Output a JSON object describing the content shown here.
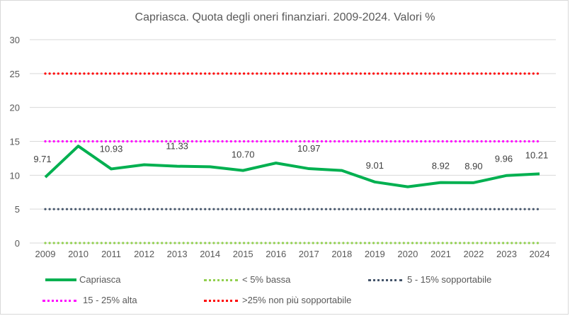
{
  "chart_data": {
    "type": "line",
    "title": "Capriasca. Quota degli oneri finanziari. 2009-2024. Valori %",
    "xlabel": "",
    "ylabel": "",
    "ylim": [
      0,
      30
    ],
    "yticks": [
      "0",
      "5",
      "10",
      "15",
      "20",
      "25",
      "30"
    ],
    "categories": [
      "2009",
      "2010",
      "2011",
      "2012",
      "2013",
      "2014",
      "2015",
      "2016",
      "2017",
      "2018",
      "2019",
      "2020",
      "2021",
      "2022",
      "2023",
      "2024"
    ],
    "grid": true,
    "legend_position": "bottom",
    "series": [
      {
        "name": "Capriasca",
        "color": "#00b050",
        "style": "solid",
        "values": [
          9.71,
          14.3,
          10.93,
          11.55,
          11.33,
          11.25,
          10.7,
          11.8,
          10.97,
          10.7,
          9.01,
          8.3,
          8.92,
          8.9,
          9.96,
          10.21
        ],
        "labels": [
          "9.71",
          "",
          "10.93",
          "",
          "11.33",
          "",
          "10.70",
          "",
          "10.97",
          "",
          "9.01",
          "",
          "8.92",
          "8.90",
          "9.96",
          "10.21"
        ]
      },
      {
        "name": "< 5% bassa",
        "color": "#92d050",
        "style": "dotted",
        "values": [
          0,
          0,
          0,
          0,
          0,
          0,
          0,
          0,
          0,
          0,
          0,
          0,
          0,
          0,
          0,
          0
        ]
      },
      {
        "name": "5 - 15% sopportabile",
        "color": "#44546a",
        "style": "dotted",
        "values": [
          5,
          5,
          5,
          5,
          5,
          5,
          5,
          5,
          5,
          5,
          5,
          5,
          5,
          5,
          5,
          5
        ]
      },
      {
        "name": "15 - 25% alta",
        "color": "#ff00ff",
        "style": "dotted",
        "values": [
          15,
          15,
          15,
          15,
          15,
          15,
          15,
          15,
          15,
          15,
          15,
          15,
          15,
          15,
          15,
          15
        ]
      },
      {
        "name": ">25% non più sopportabile",
        "color": "#ff0000",
        "style": "dotted",
        "values": [
          25,
          25,
          25,
          25,
          25,
          25,
          25,
          25,
          25,
          25,
          25,
          25,
          25,
          25,
          25,
          25
        ]
      }
    ]
  }
}
